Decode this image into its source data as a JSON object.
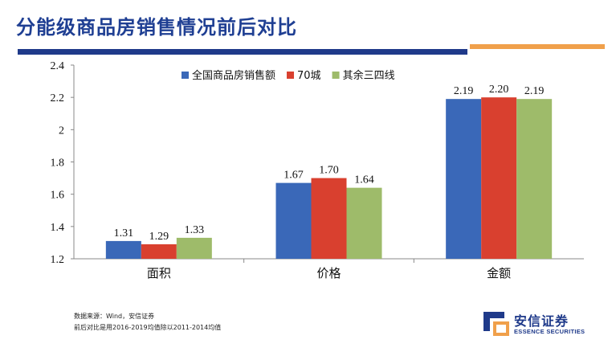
{
  "header": {
    "title": "分能级商品房销售情况前后对比"
  },
  "colors": {
    "title": "#1f3f93",
    "rule_blue": "#1f3a8a",
    "rule_orange": "#f0a04b",
    "series_blue": "#3a68b8",
    "series_red": "#d9402f",
    "series_green": "#9ebb6a"
  },
  "footnote": {
    "line1": "数据来源：Wind，安信证券",
    "line2": "前后对比是用2016-2019均值除以2011-2014均值"
  },
  "logo": {
    "name_cn": "安信证券",
    "name_en": "ESSENCE SECURITIES"
  },
  "chart_data": {
    "type": "bar",
    "categories": [
      "面积",
      "价格",
      "金额"
    ],
    "series": [
      {
        "name": "全国商品房销售额",
        "values": [
          1.31,
          1.67,
          2.19
        ],
        "labels": [
          "1.31",
          "1.67",
          "2.19"
        ],
        "color": "#3a68b8"
      },
      {
        "name": "70城",
        "values": [
          1.29,
          1.7,
          2.2
        ],
        "labels": [
          "1.29",
          "1.70",
          "2.20"
        ],
        "color": "#d9402f"
      },
      {
        "name": "其余三四线",
        "values": [
          1.33,
          1.64,
          2.19
        ],
        "labels": [
          "1.33",
          "1.64",
          "2.19"
        ],
        "color": "#9ebb6a"
      }
    ],
    "ylim": [
      1.2,
      2.4
    ],
    "yticks": [
      "1.2",
      "1.4",
      "1.6",
      "1.8",
      "2",
      "2.2",
      "2.4"
    ],
    "grid": false,
    "legend_position": "top"
  }
}
